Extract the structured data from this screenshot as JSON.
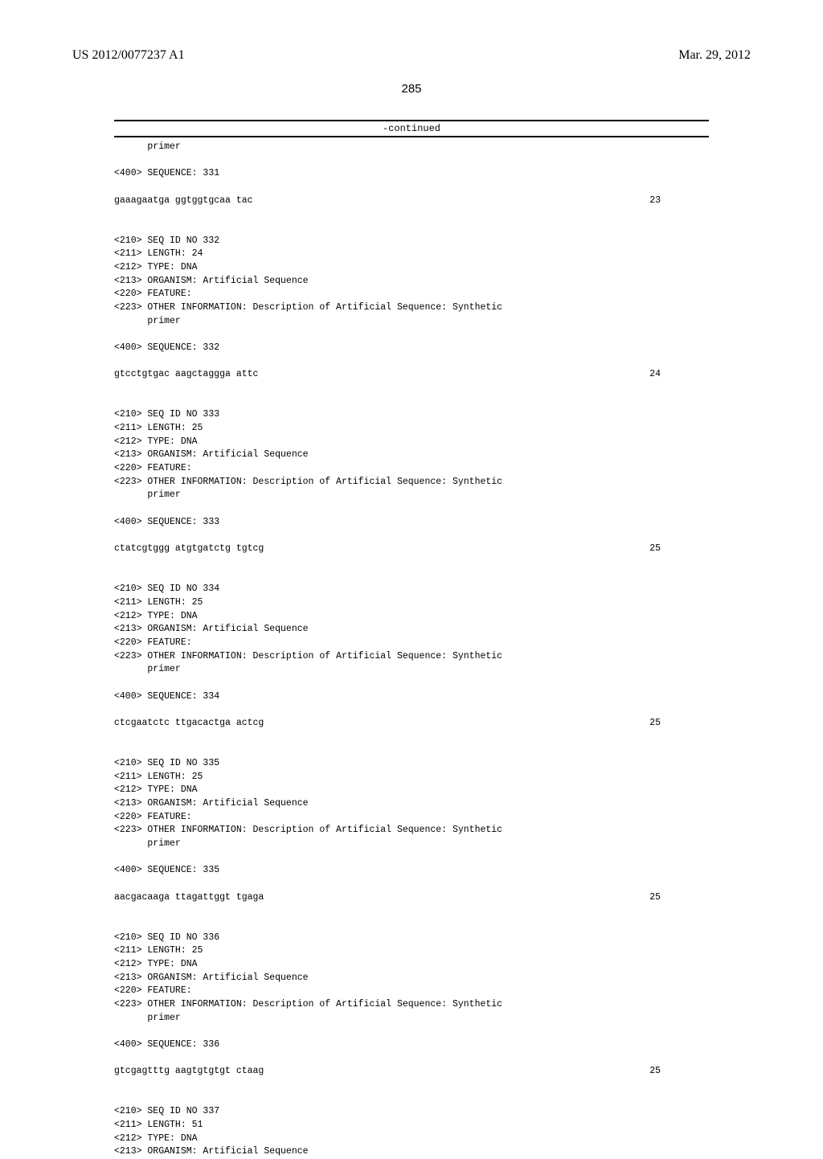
{
  "header": {
    "pub_number": "US 2012/0077237 A1",
    "pub_date": "Mar. 29, 2012"
  },
  "page_number": "285",
  "continued_label": "-continued",
  "blocks": [
    {
      "type": "pre",
      "text": "      primer\n\n<400> SEQUENCE: 331"
    },
    {
      "type": "seq",
      "sequence": "gaaagaatga ggtggtgcaa tac",
      "length": "23"
    },
    {
      "type": "pre",
      "text": "<210> SEQ ID NO 332\n<211> LENGTH: 24\n<212> TYPE: DNA\n<213> ORGANISM: Artificial Sequence\n<220> FEATURE:\n<223> OTHER INFORMATION: Description of Artificial Sequence: Synthetic\n      primer\n\n<400> SEQUENCE: 332"
    },
    {
      "type": "seq",
      "sequence": "gtcctgtgac aagctaggga attc",
      "length": "24"
    },
    {
      "type": "pre",
      "text": "<210> SEQ ID NO 333\n<211> LENGTH: 25\n<212> TYPE: DNA\n<213> ORGANISM: Artificial Sequence\n<220> FEATURE:\n<223> OTHER INFORMATION: Description of Artificial Sequence: Synthetic\n      primer\n\n<400> SEQUENCE: 333"
    },
    {
      "type": "seq",
      "sequence": "ctatcgtggg atgtgatctg tgtcg",
      "length": "25"
    },
    {
      "type": "pre",
      "text": "<210> SEQ ID NO 334\n<211> LENGTH: 25\n<212> TYPE: DNA\n<213> ORGANISM: Artificial Sequence\n<220> FEATURE:\n<223> OTHER INFORMATION: Description of Artificial Sequence: Synthetic\n      primer\n\n<400> SEQUENCE: 334"
    },
    {
      "type": "seq",
      "sequence": "ctcgaatctc ttgacactga actcg",
      "length": "25"
    },
    {
      "type": "pre",
      "text": "<210> SEQ ID NO 335\n<211> LENGTH: 25\n<212> TYPE: DNA\n<213> ORGANISM: Artificial Sequence\n<220> FEATURE:\n<223> OTHER INFORMATION: Description of Artificial Sequence: Synthetic\n      primer\n\n<400> SEQUENCE: 335"
    },
    {
      "type": "seq",
      "sequence": "aacgacaaga ttagattggt tgaga",
      "length": "25"
    },
    {
      "type": "pre",
      "text": "<210> SEQ ID NO 336\n<211> LENGTH: 25\n<212> TYPE: DNA\n<213> ORGANISM: Artificial Sequence\n<220> FEATURE:\n<223> OTHER INFORMATION: Description of Artificial Sequence: Synthetic\n      primer\n\n<400> SEQUENCE: 336"
    },
    {
      "type": "seq",
      "sequence": "gtcgagtttg aagtgtgtgt ctaag",
      "length": "25"
    },
    {
      "type": "pre",
      "text": "<210> SEQ ID NO 337\n<211> LENGTH: 51\n<212> TYPE: DNA\n<213> ORGANISM: Artificial Sequence"
    }
  ]
}
